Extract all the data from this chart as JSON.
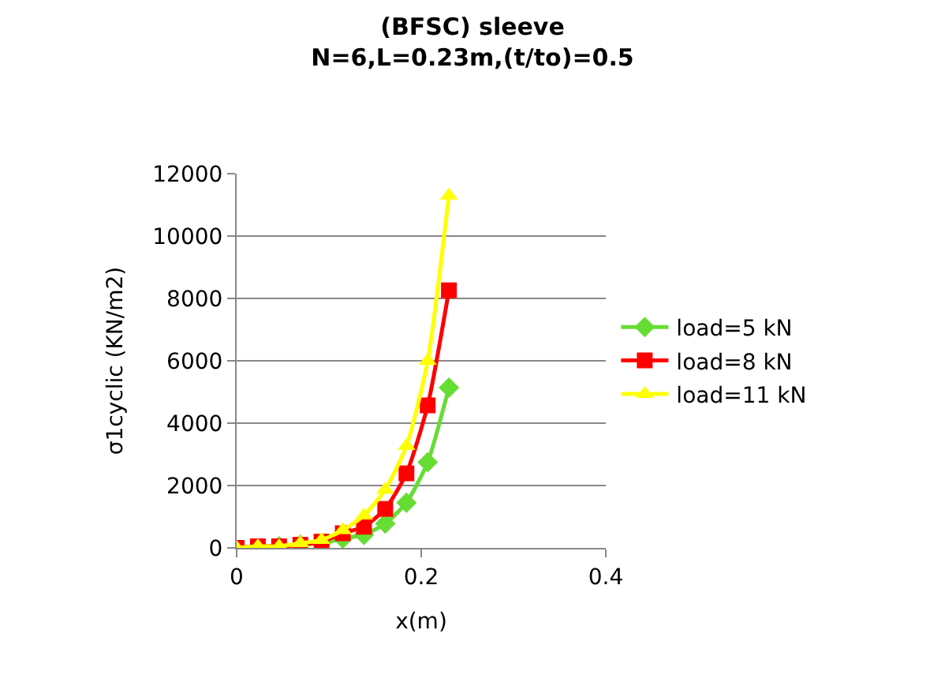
{
  "chart_data": {
    "type": "line",
    "title": "(BFSC) sleeve\nN=6,L=0.23m,(t/to)=0.5",
    "xlabel": "x(m)",
    "ylabel": "σ1cyclic (KN/m2)",
    "x": [
      0,
      0.023,
      0.046,
      0.069,
      0.092,
      0.115,
      0.138,
      0.161,
      0.184,
      0.207,
      0.23
    ],
    "series": [
      {
        "name": "load=5 kN",
        "color": "#66dd33",
        "marker": "diamond",
        "values": [
          null,
          null,
          50,
          100,
          150,
          300,
          420,
          780,
          1450,
          2750,
          5140
        ]
      },
      {
        "name": "load=8 kN",
        "color": "#ff0000",
        "marker": "square",
        "values": [
          0,
          50,
          50,
          100,
          200,
          470,
          680,
          1250,
          2390,
          4570,
          8260
        ]
      },
      {
        "name": "load=11 kN",
        "color": "#ffff00",
        "marker": "triangle",
        "values": [
          0,
          50,
          50,
          150,
          250,
          570,
          1040,
          1870,
          3270,
          6000,
          11300
        ]
      }
    ],
    "xlim": [
      0,
      0.4
    ],
    "xticks": [
      0,
      0.2,
      0.4
    ],
    "ylim": [
      0,
      12000
    ],
    "yticks": [
      0,
      2000,
      4000,
      6000,
      8000,
      10000,
      12000
    ],
    "grid": "y",
    "legend": "right",
    "line_style": "solid"
  }
}
